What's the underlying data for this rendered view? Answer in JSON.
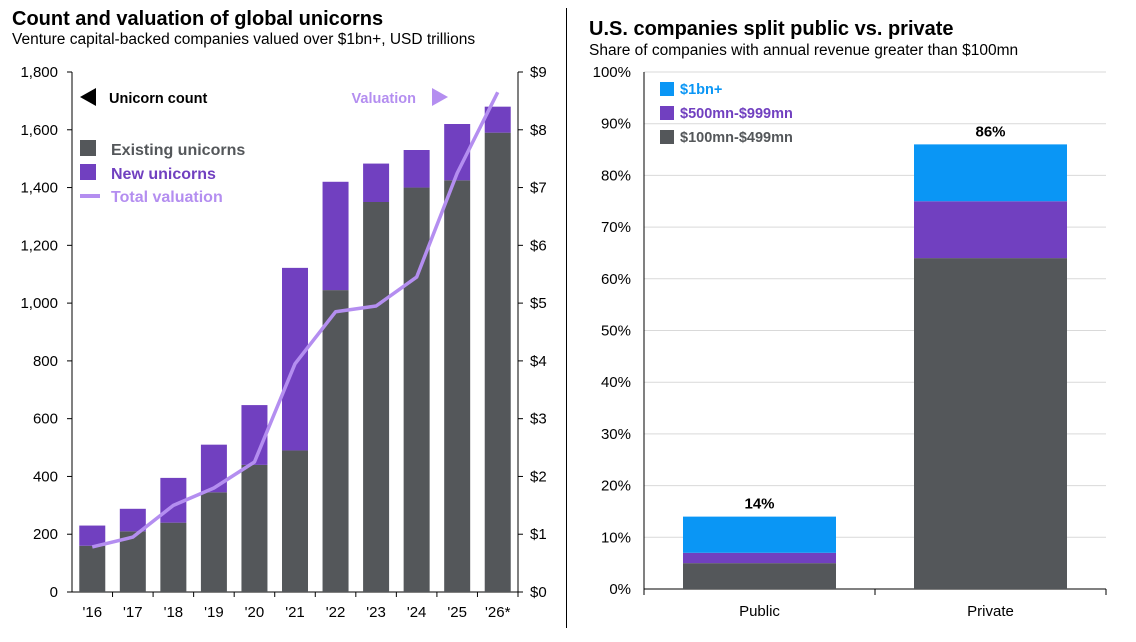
{
  "colors": {
    "existing": "#54575a",
    "new": "#7140c0",
    "valuation": "#b48ef0",
    "b1": "#0a96f5",
    "b500": "#7140c0",
    "b100": "#54575a",
    "axis": "#000000",
    "grid": "#d9d9d9"
  },
  "chart_data": [
    {
      "type": "bar",
      "stacked": true,
      "title": "Count and valuation of global unicorns",
      "subtitle": "Venture capital-backed companies valued over $1bn+, USD trillions",
      "categories": [
        "'16",
        "'17",
        "'18",
        "'19",
        "'20",
        "'21",
        "'22",
        "'23",
        "'24",
        "'25",
        "'26*"
      ],
      "series": [
        {
          "name": "Existing unicorns",
          "values": [
            160,
            210,
            240,
            345,
            440,
            490,
            1045,
            1350,
            1400,
            1425,
            1590
          ]
        },
        {
          "name": "New unicorns",
          "values": [
            70,
            78,
            155,
            165,
            207,
            632,
            375,
            133,
            130,
            195,
            90
          ]
        },
        {
          "name": "Total valuation",
          "type": "line",
          "axis": "right",
          "values": [
            0.78,
            0.95,
            1.5,
            1.8,
            2.25,
            3.95,
            4.85,
            4.95,
            5.45,
            7.25,
            8.65
          ]
        }
      ],
      "left_axis": {
        "ticks": [
          "0",
          "200",
          "400",
          "600",
          "800",
          "1,000",
          "1,200",
          "1,400",
          "1,600",
          "1,800"
        ],
        "ylim": [
          0,
          1800
        ]
      },
      "right_axis": {
        "ticks": [
          "$0",
          "$1",
          "$2",
          "$3",
          "$4",
          "$5",
          "$6",
          "$7",
          "$8",
          "$9"
        ],
        "ylim": [
          0,
          9
        ]
      },
      "legend": {
        "existing": "Existing unicorns",
        "new": "New unicorns",
        "valuation": "Total valuation",
        "axis_left": "Unicorn count",
        "axis_right": "Valuation"
      }
    },
    {
      "type": "bar",
      "stacked": true,
      "title": "U.S. companies split public vs. private",
      "subtitle": "Share of companies with annual revenue greater than $100mn",
      "categories": [
        "Public",
        "Private"
      ],
      "series": [
        {
          "name": "$100mn-$499mn",
          "values": [
            5,
            64
          ]
        },
        {
          "name": "$500mn-$999mn",
          "values": [
            2,
            11
          ]
        },
        {
          "name": "$1bn+",
          "values": [
            7,
            11
          ]
        }
      ],
      "totals": [
        "14%",
        "86%"
      ],
      "yticks": [
        "0%",
        "10%",
        "20%",
        "30%",
        "40%",
        "50%",
        "60%",
        "70%",
        "80%",
        "90%",
        "100%"
      ],
      "ylim": [
        0,
        100
      ],
      "legend": {
        "b1": "$1bn+",
        "b500": "$500mn-$999mn",
        "b100": "$100mn-$499mn"
      }
    }
  ]
}
